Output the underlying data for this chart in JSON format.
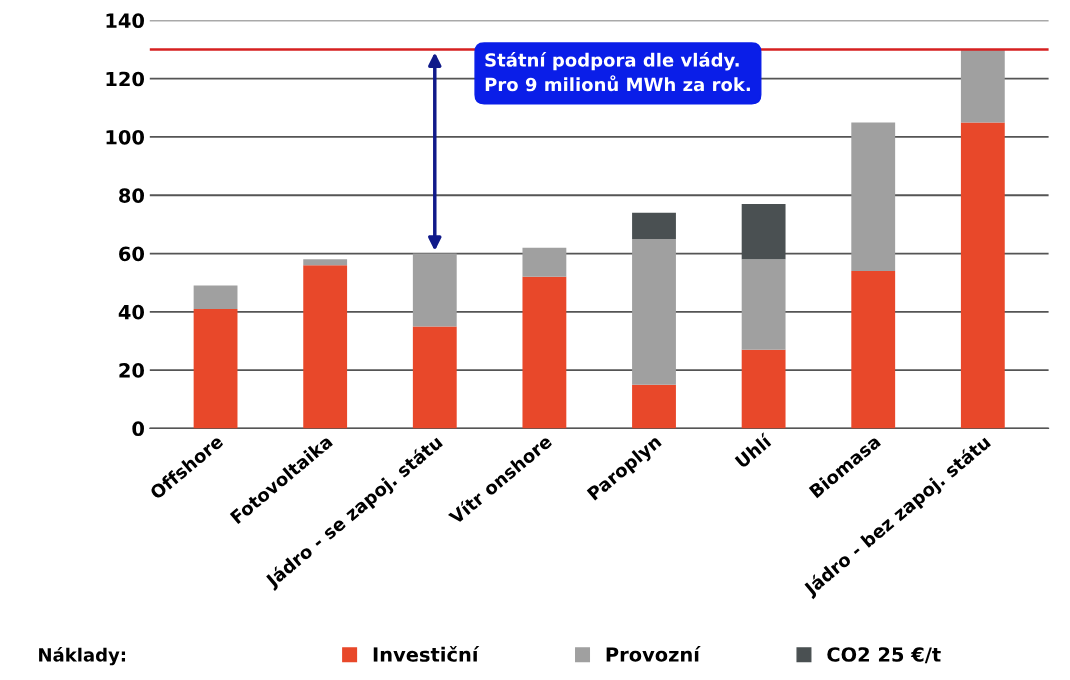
{
  "chart_data": {
    "type": "bar",
    "stacked": true,
    "categories": [
      "Offshore",
      "Fotovoltaika",
      "Jádro - se zapoj. státu",
      "Vítr onshore",
      "Paroplyn",
      "Uhlí",
      "Biomasa",
      "Jádro - bez zapoj. státu"
    ],
    "series": [
      {
        "name": "Investiční",
        "color": "#e8482a",
        "values": [
          41,
          56,
          35,
          52,
          15,
          27,
          54,
          105
        ]
      },
      {
        "name": "Provozní",
        "color": "#a0a0a0",
        "values": [
          8,
          2,
          25,
          10,
          50,
          31,
          51,
          25
        ]
      },
      {
        "name": "CO2 25 €/t",
        "color": "#4a5052",
        "values": [
          null,
          null,
          null,
          null,
          9,
          19,
          null,
          null
        ]
      }
    ],
    "ylim": [
      0,
      140
    ],
    "yticks": [
      0,
      20,
      40,
      60,
      80,
      100,
      120,
      140
    ],
    "grid": "y",
    "legend": "bottom",
    "legend_title": "Náklady:",
    "ref_lines": [
      {
        "axis": "y",
        "value": 130,
        "color": "#d62020"
      }
    ],
    "annotations": [
      "Státní podpora dle vlády.\nPro 9 milionů MWh za rok."
    ]
  }
}
